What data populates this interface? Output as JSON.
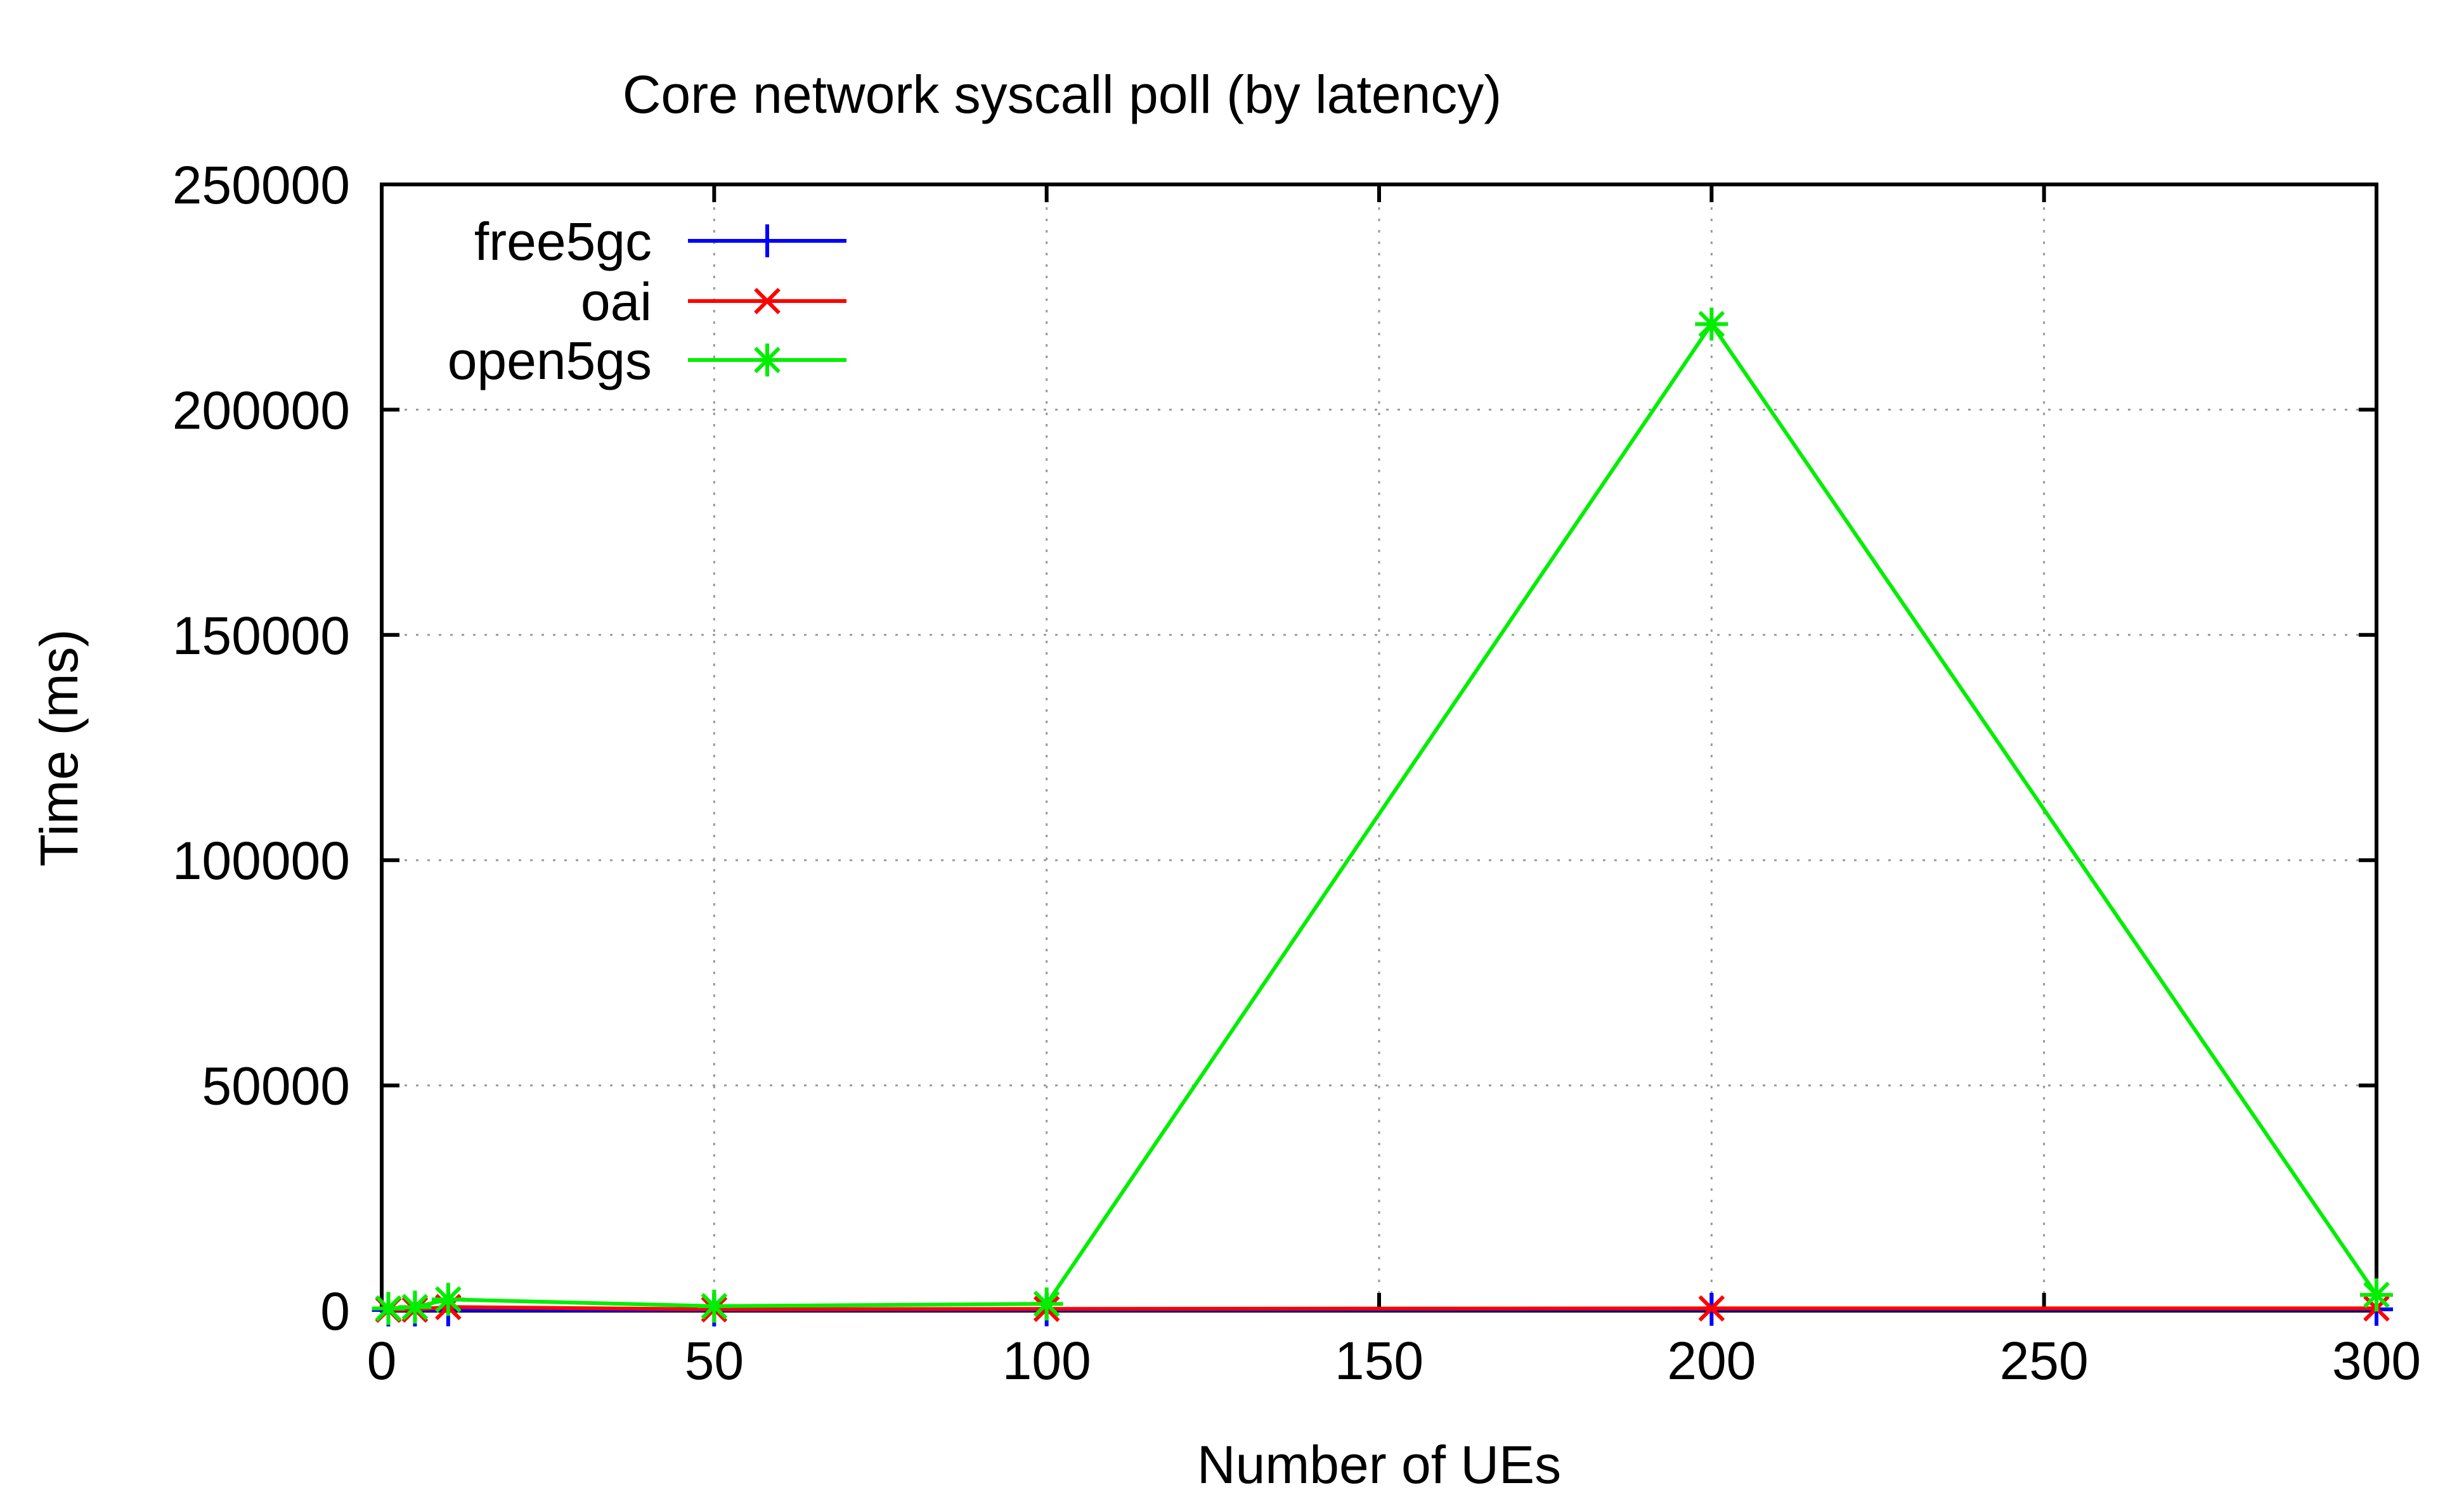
{
  "chart_data": {
    "type": "line",
    "title": "Core network syscall poll (by latency)",
    "xlabel": "Number of UEs",
    "ylabel": "Time (ms)",
    "xlim": [
      0,
      300
    ],
    "ylim": [
      0,
      250000
    ],
    "xticks": [
      0,
      50,
      100,
      150,
      200,
      250,
      300
    ],
    "yticks": [
      0,
      50000,
      100000,
      150000,
      200000,
      250000
    ],
    "grid": true,
    "legend_position": "top-left",
    "series": [
      {
        "name": "free5gc",
        "color": "#0000ff",
        "marker": "plus",
        "x": [
          1,
          5,
          10,
          50,
          100,
          200,
          300
        ],
        "y": [
          150,
          150,
          200,
          150,
          200,
          300,
          300
        ]
      },
      {
        "name": "oai",
        "color": "#ff0000",
        "marker": "cross",
        "x": [
          1,
          5,
          10,
          50,
          100,
          200,
          300
        ],
        "y": [
          200,
          250,
          800,
          300,
          400,
          500,
          500
        ]
      },
      {
        "name": "open5gs",
        "color": "#00ee00",
        "marker": "star",
        "x": [
          1,
          5,
          10,
          50,
          100,
          200,
          300
        ],
        "y": [
          500,
          800,
          2500,
          1000,
          1500,
          219000,
          3500
        ]
      }
    ]
  }
}
